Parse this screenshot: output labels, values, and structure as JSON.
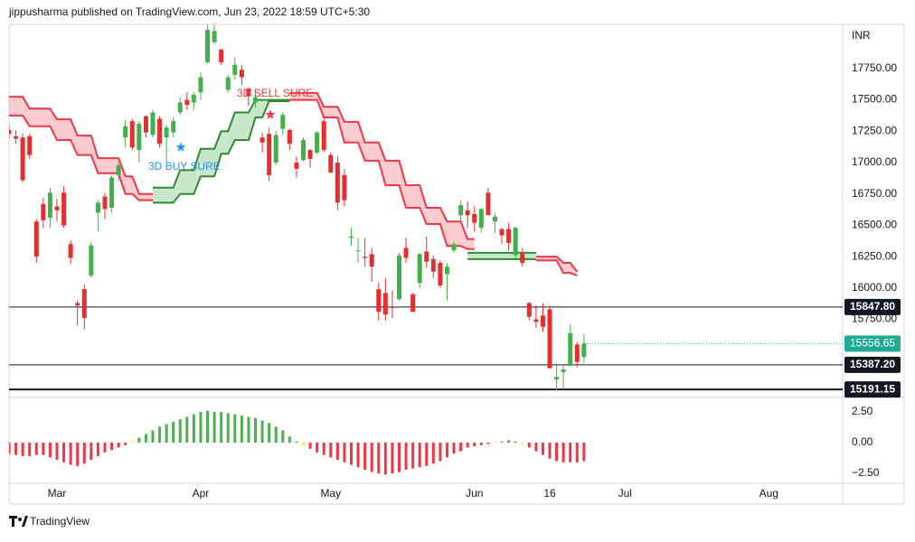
{
  "header": {
    "byline": "jippusharma published on TradingView.com, Jun 23, 2022 18:59 UTC+5:30"
  },
  "footer": {
    "brand": "TradingView"
  },
  "chart_data": {
    "type": "candlestick",
    "currency": "INR",
    "colors": {
      "up": "#43b14b",
      "down": "#e62e2e",
      "last": "#22ab94"
    },
    "xlim": [
      0,
      121.8
    ],
    "xticks": [
      {
        "value": 7,
        "label": "Mar"
      },
      {
        "value": 28,
        "label": "Apr"
      },
      {
        "value": 47,
        "label": "May"
      },
      {
        "value": 68,
        "label": "Jun"
      },
      {
        "value": 79,
        "label": "16"
      },
      {
        "value": 90,
        "label": "Jul"
      },
      {
        "value": 111,
        "label": "Aug"
      }
    ],
    "ylim": [
      15127,
      18102
    ],
    "yticks": [
      {
        "value": 17750,
        "label": "17750.00"
      },
      {
        "value": 17500,
        "label": "17500.00"
      },
      {
        "value": 17250,
        "label": "17250.00"
      },
      {
        "value": 17000,
        "label": "17000.00"
      },
      {
        "value": 16750,
        "label": "16750.00"
      },
      {
        "value": 16500,
        "label": "16500.00"
      },
      {
        "value": 16250,
        "label": "16250.00"
      },
      {
        "value": 16000,
        "label": "16000.00"
      },
      {
        "value": 15750,
        "label": "15750.00"
      }
    ],
    "ohlc": [
      [
        17260,
        17300,
        17190,
        17230
      ],
      [
        17210,
        17260,
        17150,
        17190
      ],
      [
        17200,
        17230,
        16840,
        16860
      ],
      [
        17210,
        17230,
        17030,
        17060
      ],
      [
        16530,
        16550,
        16200,
        16250
      ],
      [
        16670,
        16720,
        16480,
        16540
      ],
      [
        16560,
        16800,
        16480,
        16760
      ],
      [
        16650,
        16710,
        16530,
        16620
      ],
      [
        16760,
        16810,
        16480,
        16500
      ],
      [
        16350,
        16380,
        16190,
        16240
      ],
      [
        15880,
        15900,
        15700,
        15860
      ],
      [
        15990,
        16030,
        15670,
        15760
      ],
      [
        16100,
        16370,
        16080,
        16340
      ],
      [
        16600,
        16700,
        16450,
        16680
      ],
      [
        16730,
        16760,
        16550,
        16630
      ],
      [
        16640,
        16900,
        16600,
        16880
      ],
      [
        16900,
        17000,
        16850,
        16980
      ],
      [
        17200,
        17340,
        17120,
        17290
      ],
      [
        17330,
        17350,
        17100,
        17120
      ],
      [
        17100,
        17330,
        17000,
        17310
      ],
      [
        17370,
        17380,
        17200,
        17240
      ],
      [
        17220,
        17420,
        17200,
        17400
      ],
      [
        17350,
        17370,
        17120,
        17150
      ],
      [
        17200,
        17300,
        17000,
        17280
      ],
      [
        17240,
        17360,
        17200,
        17330
      ],
      [
        17400,
        17520,
        17380,
        17480
      ],
      [
        17500,
        17560,
        17420,
        17460
      ],
      [
        17480,
        17560,
        17420,
        17540
      ],
      [
        17560,
        17720,
        17500,
        17680
      ],
      [
        17800,
        18114,
        17790,
        18060
      ],
      [
        17960,
        18100,
        17940,
        18050
      ],
      [
        17900,
        17910,
        17780,
        17800
      ],
      [
        17580,
        17700,
        17560,
        17680
      ],
      [
        17700,
        17840,
        17660,
        17780
      ],
      [
        17740,
        17780,
        17620,
        17680
      ],
      [
        17590,
        17600,
        17450,
        17530
      ],
      [
        17480,
        17590,
        17440,
        17520
      ],
      [
        17200,
        17240,
        17080,
        17160
      ],
      [
        17230,
        17280,
        16850,
        16900
      ],
      [
        17000,
        17250,
        16980,
        17220
      ],
      [
        17270,
        17400,
        17220,
        17380
      ],
      [
        17260,
        17270,
        17100,
        17150
      ],
      [
        17000,
        17050,
        16880,
        16950
      ],
      [
        17020,
        17200,
        17010,
        17180
      ],
      [
        17100,
        17110,
        16960,
        17030
      ],
      [
        17080,
        17250,
        17060,
        17240
      ],
      [
        17330,
        17380,
        17080,
        17100
      ],
      [
        17060,
        17080,
        16920,
        16920
      ],
      [
        17000,
        17050,
        16620,
        16680
      ],
      [
        16900,
        16950,
        16650,
        16700
      ],
      [
        16400,
        16480,
        16340,
        16410
      ],
      [
        16300,
        16400,
        16200,
        16300
      ],
      [
        16250,
        16400,
        16170,
        16240
      ],
      [
        16270,
        16320,
        16050,
        16170
      ],
      [
        15990,
        16040,
        15740,
        15810
      ],
      [
        15960,
        16080,
        15740,
        15790
      ],
      [
        15850,
        15980,
        15760,
        15840
      ],
      [
        15910,
        16280,
        15900,
        16260
      ],
      [
        16320,
        16400,
        16200,
        16240
      ],
      [
        15950,
        15960,
        15810,
        15810
      ],
      [
        16040,
        16280,
        16000,
        16270
      ],
      [
        16290,
        16410,
        16160,
        16210
      ],
      [
        16230,
        16260,
        16080,
        16130
      ],
      [
        16200,
        16220,
        16000,
        16020
      ],
      [
        16110,
        16200,
        15900,
        16170
      ],
      [
        16300,
        16370,
        16280,
        16350
      ],
      [
        16580,
        16700,
        16530,
        16660
      ],
      [
        16620,
        16690,
        16480,
        16580
      ],
      [
        16590,
        16650,
        16450,
        16520
      ],
      [
        16480,
        16640,
        16440,
        16630
      ],
      [
        16760,
        16800,
        16600,
        16580
      ],
      [
        16530,
        16600,
        16440,
        16570
      ],
      [
        16470,
        16480,
        16350,
        16420
      ],
      [
        16470,
        16520,
        16300,
        16360
      ],
      [
        16260,
        16490,
        16240,
        16480
      ],
      [
        16280,
        16320,
        16170,
        16200
      ],
      [
        15880,
        15890,
        15740,
        15770
      ],
      [
        15750,
        15860,
        15680,
        15730
      ],
      [
        15780,
        15880,
        15650,
        15690
      ],
      [
        15830,
        15860,
        15370,
        15360
      ],
      [
        15270,
        15400,
        15180,
        15290
      ],
      [
        15330,
        15380,
        15190,
        15350
      ],
      [
        15380,
        15710,
        15380,
        15640
      ],
      [
        15550,
        15570,
        15370,
        15410
      ],
      [
        15450,
        15630,
        15400,
        15556.65
      ]
    ],
    "bands": [
      {
        "color": "#f23645",
        "fill": "rgba(242,54,69,0.25)",
        "upper": [
          17525,
          17525,
          17525,
          17430,
          17430,
          17430,
          17430,
          17345,
          17345,
          17345,
          17215,
          17215,
          17215,
          17035,
          17035,
          17035,
          17035,
          16890,
          16890,
          16750,
          16750,
          16750,
          null,
          null,
          null,
          null,
          null,
          null,
          null,
          null,
          null,
          null,
          null,
          null,
          null,
          null,
          null,
          null,
          null,
          null,
          null,
          17555,
          17555,
          17555,
          17555,
          17555,
          17445,
          17445,
          17445,
          17325,
          17325,
          17325,
          17160,
          17160,
          17160,
          17015,
          17015,
          17015,
          16820,
          16820,
          16820,
          16640,
          16640,
          16640,
          16530,
          16530,
          16530,
          16390,
          16390,
          null,
          null,
          null,
          null,
          null,
          null,
          null,
          null,
          16250,
          16250,
          16250,
          16250,
          16200,
          16200,
          16130,
          null
        ],
        "lower": [
          17375,
          17375,
          17375,
          17290,
          17290,
          17290,
          17290,
          17180,
          17180,
          17180,
          17060,
          17060,
          17060,
          16915,
          16915,
          16915,
          16915,
          16750,
          16750,
          16700,
          16700,
          16700,
          null,
          null,
          null,
          null,
          null,
          null,
          null,
          null,
          null,
          null,
          null,
          null,
          null,
          null,
          null,
          null,
          null,
          null,
          null,
          17500,
          17500,
          17500,
          17500,
          17500,
          17360,
          17360,
          17360,
          17160,
          17160,
          17160,
          17015,
          17015,
          17015,
          16820,
          16820,
          16820,
          16640,
          16640,
          16640,
          16510,
          16510,
          16510,
          16335,
          16335,
          16335,
          16310,
          16310,
          null,
          null,
          null,
          null,
          null,
          null,
          null,
          null,
          16220,
          16220,
          16220,
          16220,
          16120,
          16120,
          16100,
          null
        ]
      },
      {
        "color": "#2e8b2e",
        "fill": "rgba(76,175,80,0.3)",
        "upper": [
          null,
          null,
          null,
          null,
          null,
          null,
          null,
          null,
          null,
          null,
          null,
          null,
          null,
          null,
          null,
          null,
          null,
          null,
          null,
          null,
          null,
          16800,
          16800,
          16800,
          16800,
          16940,
          16940,
          16940,
          17110,
          17110,
          17110,
          17250,
          17250,
          17400,
          17400,
          17400,
          17500,
          17500,
          17500,
          17500,
          17500,
          17500,
          null,
          null,
          null,
          null,
          null,
          null,
          null,
          null,
          null,
          null,
          null,
          null,
          null,
          null,
          null,
          null,
          null,
          null,
          null,
          null,
          null,
          null,
          null,
          null,
          null,
          16280,
          16280,
          16280,
          16280,
          16280,
          16280,
          16280,
          16280,
          16280,
          16280,
          16280,
          null,
          null,
          null,
          null,
          null,
          null,
          null
        ],
        "lower": [
          null,
          null,
          null,
          null,
          null,
          null,
          null,
          null,
          null,
          null,
          null,
          null,
          null,
          null,
          null,
          null,
          null,
          null,
          null,
          null,
          null,
          16680,
          16680,
          16680,
          16680,
          16750,
          16750,
          16750,
          16890,
          16890,
          16890,
          17070,
          17070,
          17180,
          17180,
          17180,
          17360,
          17360,
          17490,
          17490,
          17490,
          17490,
          null,
          null,
          null,
          null,
          null,
          null,
          null,
          null,
          null,
          null,
          null,
          null,
          null,
          null,
          null,
          null,
          null,
          null,
          null,
          null,
          null,
          null,
          null,
          null,
          null,
          16230,
          16230,
          16230,
          16230,
          16230,
          16230,
          16230,
          16230,
          16230,
          16230,
          16230,
          null,
          null,
          null,
          null,
          null,
          null,
          null
        ]
      }
    ],
    "levels": [
      {
        "value": 15847.8,
        "label": "15847.80",
        "width": 1
      },
      {
        "value": 15387.2,
        "label": "15387.20",
        "width": 1
      },
      {
        "value": 15191.15,
        "label": "15191.15",
        "width": 2
      }
    ],
    "annotations": [
      {
        "text": "3D SELL SURE",
        "color": "#f23645"
      },
      {
        "text": "3D BUY SURE",
        "color": "#2196f3"
      }
    ],
    "oscillator": {
      "colors": {
        "up": "#4caf50",
        "down": "#f23645",
        "cross": "#ffeb3b"
      },
      "ylim": [
        -3.31,
        3.68
      ],
      "yticks": [
        {
          "value": 2.5,
          "label": "2.50"
        },
        {
          "value": 0,
          "label": "0.00"
        },
        {
          "value": -2.5,
          "label": "−2.50"
        }
      ],
      "values": [
        -0.9,
        -1.0,
        -1.1,
        -1.1,
        -1.0,
        -1.0,
        -1.2,
        -1.4,
        -1.6,
        -1.8,
        -1.9,
        -1.7,
        -1.4,
        -1.1,
        -0.8,
        -0.6,
        -0.4,
        -0.2,
        0.1,
        0.4,
        0.7,
        1.0,
        1.3,
        1.5,
        1.7,
        1.9,
        2.1,
        2.3,
        2.5,
        2.6,
        2.5,
        2.5,
        2.4,
        2.3,
        2.2,
        2.1,
        2.0,
        1.8,
        1.6,
        1.3,
        1.0,
        0.5,
        0.1,
        -0.2,
        -0.5,
        -0.8,
        -1.0,
        -1.2,
        -1.4,
        -1.6,
        -1.8,
        -2.0,
        -2.2,
        -2.4,
        -2.5,
        -2.6,
        -2.5,
        -2.4,
        -2.2,
        -2.1,
        -2.0,
        -1.9,
        -1.7,
        -1.5,
        -1.2,
        -0.9,
        -0.7,
        -0.4,
        -0.3,
        -0.2,
        -0.1,
        0.1,
        0.1,
        0.2,
        0.1,
        -0.1,
        -0.4,
        -0.7,
        -1.0,
        -1.3,
        -1.5,
        -1.6,
        -1.6,
        -1.6,
        -1.5
      ]
    }
  }
}
